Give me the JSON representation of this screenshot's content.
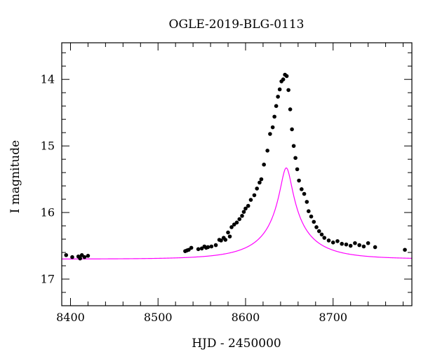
{
  "chart_data": {
    "type": "scatter",
    "title": "OGLE-2019-BLG-0113",
    "xlabel": "HJD - 2450000",
    "ylabel": "I magnitude",
    "xlim": [
      8390,
      8790
    ],
    "ylim": [
      17.4,
      13.45
    ],
    "y_inverted": true,
    "grid": false,
    "x_major_ticks": [
      8400,
      8500,
      8600,
      8700
    ],
    "x_tick_labels": [
      "8400",
      "8500",
      "8600",
      "8700"
    ],
    "y_major_ticks": [
      14,
      15,
      16,
      17
    ],
    "y_tick_labels": [
      "14",
      "15",
      "16",
      "17"
    ],
    "colors": {
      "points": "#000000",
      "model": "#ff00ff",
      "axes": "#000000"
    },
    "model": {
      "name": "",
      "description_type": "paczynski",
      "t0": 8646.5,
      "u0": 0.1,
      "tE": 63,
      "baseline_mag": 16.7,
      "blend_fraction": 0.28
    },
    "series": [
      {
        "name": "",
        "x": [
          8395,
          8402,
          8409,
          8411,
          8413,
          8416,
          8420,
          8531,
          8533,
          8535,
          8538,
          8546,
          8550,
          8553,
          8555,
          8557,
          8561,
          8566,
          8570,
          8572,
          8575,
          8577,
          8580,
          8582,
          8584,
          8587,
          8590,
          8593,
          8596,
          8598,
          8600,
          8603,
          8606,
          8610,
          8613,
          8616,
          8618,
          8621,
          8625,
          8628,
          8631,
          8633,
          8635,
          8637,
          8639,
          8641,
          8643,
          8645,
          8647,
          8649,
          8651,
          8653,
          8655,
          8657,
          8659,
          8661,
          8664,
          8667,
          8670,
          8672,
          8675,
          8678,
          8681,
          8684,
          8687,
          8690,
          8695,
          8700,
          8705,
          8710,
          8715,
          8720,
          8725,
          8730,
          8735,
          8740,
          8748,
          8782
        ],
        "y": [
          16.64,
          16.67,
          16.66,
          16.69,
          16.64,
          16.67,
          16.65,
          16.58,
          16.57,
          16.56,
          16.53,
          16.55,
          16.54,
          16.51,
          16.53,
          16.52,
          16.51,
          16.49,
          16.41,
          16.42,
          16.38,
          16.41,
          16.3,
          16.36,
          16.22,
          16.18,
          16.15,
          16.1,
          16.05,
          15.99,
          15.94,
          15.9,
          15.81,
          15.74,
          15.64,
          15.55,
          15.5,
          15.28,
          15.07,
          14.82,
          14.72,
          14.56,
          14.4,
          14.26,
          14.15,
          14.03,
          14.0,
          13.93,
          13.95,
          14.16,
          14.45,
          14.75,
          15.0,
          15.18,
          15.35,
          15.52,
          15.65,
          15.72,
          15.84,
          15.98,
          16.06,
          16.14,
          16.22,
          16.28,
          16.33,
          16.38,
          16.42,
          16.45,
          16.43,
          16.47,
          16.48,
          16.5,
          16.46,
          16.49,
          16.51,
          16.46,
          16.52,
          16.56
        ]
      }
    ]
  }
}
